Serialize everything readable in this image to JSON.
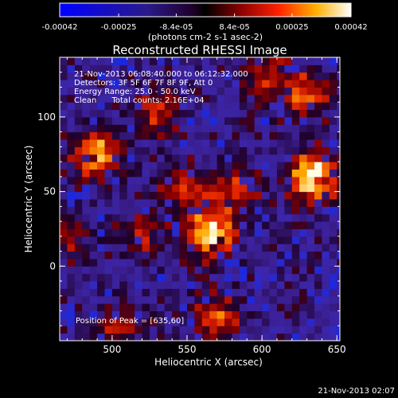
{
  "chart_data": {
    "type": "heatmap",
    "title": "Reconstructed RHESSI Image",
    "xlabel": "Heliocentric X (arcsec)",
    "ylabel": "Heliocentric Y (arcsec)",
    "xlim": [
      465,
      652
    ],
    "ylim": [
      -50,
      140
    ],
    "x_ticks": [
      500,
      550,
      600,
      650
    ],
    "y_ticks": [
      0,
      50,
      100
    ],
    "colorbar": {
      "label": "(photons cm-2 s-1 asec-2)",
      "range": [
        -0.00042,
        0.00042
      ],
      "ticks": [
        "-0.00042",
        "-0.00025",
        "-8.4e-05",
        "8.4e-05",
        "0.00025",
        "0.00042"
      ]
    },
    "info_lines": [
      "21-Nov-2013 06:08:40.000 to 06:12:32.000",
      "Detectors: 3F 5F 6F 7F 8F 9F, Att 0",
      "Energy Range: 25.0 - 50.0 keV",
      "Clean      Total counts: 2.16E+04"
    ],
    "peak_label": "Position of Peak = [635,60]",
    "sources": [
      {
        "x": 635,
        "y": 60,
        "peak": 1.0
      },
      {
        "x": 565,
        "y": 22,
        "peak": 0.85
      },
      {
        "x": 490,
        "y": 75,
        "peak": 0.75
      },
      {
        "x": 628,
        "y": 115,
        "peak": 0.6
      },
      {
        "x": 548,
        "y": 52,
        "peak": 0.45
      },
      {
        "x": 582,
        "y": 50,
        "peak": 0.45
      },
      {
        "x": 570,
        "y": -35,
        "peak": 0.5
      },
      {
        "x": 530,
        "y": 105,
        "peak": 0.45
      },
      {
        "x": 505,
        "y": -40,
        "peak": 0.35
      },
      {
        "x": 600,
        "y": 130,
        "peak": 0.4
      },
      {
        "x": 520,
        "y": 20,
        "peak": 0.3
      },
      {
        "x": 470,
        "y": 20,
        "peak": 0.3
      }
    ],
    "grid": false
  },
  "footer": {
    "timestamp": "21-Nov-2013 02:07"
  },
  "colors": {
    "background": "#000000",
    "text": "#ffffff"
  }
}
